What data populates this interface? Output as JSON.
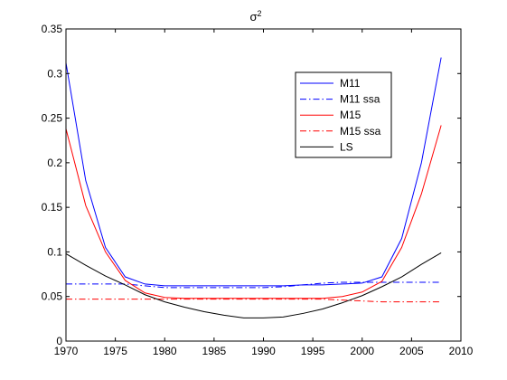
{
  "chart_data": {
    "type": "line",
    "title": "σ",
    "title_superscript": "2",
    "xlabel": "",
    "ylabel": "",
    "xlim": [
      1970,
      2010
    ],
    "ylim": [
      0,
      0.35
    ],
    "xticks": [
      1970,
      1975,
      1980,
      1985,
      1990,
      1995,
      2000,
      2005,
      2010
    ],
    "yticks": [
      0,
      0.05,
      0.1,
      0.15,
      0.2,
      0.25,
      0.3,
      0.35
    ],
    "xtick_labels": [
      "1970",
      "1975",
      "1980",
      "1985",
      "1990",
      "1995",
      "2000",
      "2005",
      "2010"
    ],
    "ytick_labels": [
      "0",
      "0.05",
      "0.1",
      "0.15",
      "0.2",
      "0.25",
      "0.3",
      "0.35"
    ],
    "grid": false,
    "legend_position": "top-right",
    "x": [
      1970,
      1972,
      1974,
      1976,
      1978,
      1980,
      1982,
      1984,
      1986,
      1988,
      1990,
      1992,
      1994,
      1996,
      1998,
      2000,
      2002,
      2004,
      2006,
      2008
    ],
    "series": [
      {
        "name": "M11",
        "color": "#0000ff",
        "dash": "solid",
        "values": [
          0.312,
          0.18,
          0.105,
          0.072,
          0.064,
          0.062,
          0.062,
          0.062,
          0.062,
          0.062,
          0.062,
          0.062,
          0.063,
          0.063,
          0.064,
          0.065,
          0.072,
          0.115,
          0.2,
          0.318
        ]
      },
      {
        "name": "M11 ssa",
        "color": "#0000ff",
        "dash": "dashdot",
        "values": [
          0.064,
          0.064,
          0.064,
          0.064,
          0.062,
          0.06,
          0.06,
          0.06,
          0.06,
          0.06,
          0.06,
          0.061,
          0.063,
          0.065,
          0.066,
          0.066,
          0.066,
          0.066,
          0.066,
          0.066
        ]
      },
      {
        "name": "M15",
        "color": "#ff0000",
        "dash": "solid",
        "values": [
          0.238,
          0.152,
          0.1,
          0.068,
          0.054,
          0.049,
          0.048,
          0.048,
          0.048,
          0.048,
          0.048,
          0.048,
          0.048,
          0.048,
          0.05,
          0.055,
          0.067,
          0.105,
          0.165,
          0.242
        ]
      },
      {
        "name": "M15 ssa",
        "color": "#ff0000",
        "dash": "dashdot",
        "values": [
          0.047,
          0.047,
          0.047,
          0.047,
          0.047,
          0.047,
          0.047,
          0.047,
          0.047,
          0.047,
          0.047,
          0.047,
          0.047,
          0.047,
          0.046,
          0.045,
          0.044,
          0.044,
          0.044,
          0.044
        ]
      },
      {
        "name": "LS",
        "color": "#000000",
        "dash": "solid",
        "values": [
          0.098,
          0.085,
          0.073,
          0.063,
          0.052,
          0.044,
          0.038,
          0.033,
          0.029,
          0.026,
          0.026,
          0.027,
          0.031,
          0.036,
          0.043,
          0.051,
          0.061,
          0.072,
          0.086,
          0.099
        ]
      }
    ]
  }
}
